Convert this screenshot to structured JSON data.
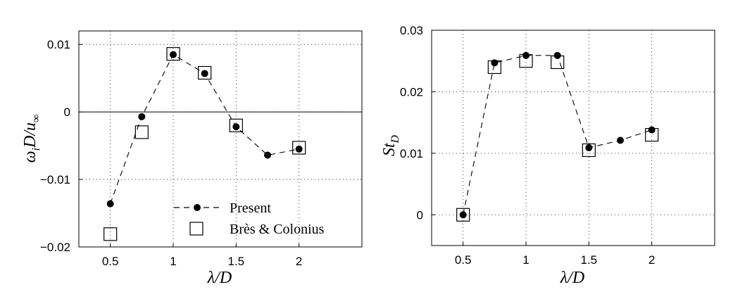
{
  "chart_data": [
    {
      "type": "line",
      "xlabel": "λ/D",
      "ylabel": "ω_i D/u_∞",
      "xlim": [
        0.25,
        2.5
      ],
      "ylim": [
        -0.02,
        0.012
      ],
      "xticks": [
        0.5,
        1,
        1.5,
        2
      ],
      "xtick_labels": [
        "0.5",
        "1",
        "1.5",
        "2"
      ],
      "yticks": [
        -0.02,
        -0.01,
        0,
        0.01
      ],
      "ytick_labels": [
        "−0.02",
        "−0.01",
        "0",
        "0.01"
      ],
      "grid": true,
      "zero_line": true,
      "legend_position": "bottom-right",
      "series": [
        {
          "name": "Present",
          "marker": "filled-circle",
          "line": "dashed",
          "x": [
            0.5,
            0.75,
            1.0,
            1.25,
            1.5,
            1.75,
            2.0
          ],
          "y": [
            -0.0136,
            -0.0007,
            0.0085,
            0.0057,
            -0.0022,
            -0.0064,
            -0.0055
          ]
        },
        {
          "name": "Brès & Colonius",
          "marker": "open-square",
          "line": "none",
          "x": [
            0.5,
            0.75,
            1.0,
            1.25,
            1.5,
            2.0
          ],
          "y": [
            -0.0181,
            -0.003,
            0.0086,
            0.0058,
            -0.002,
            -0.0053
          ]
        }
      ]
    },
    {
      "type": "line",
      "xlabel": "λ/D",
      "ylabel": "St_D",
      "xlim": [
        0.25,
        2.5
      ],
      "ylim": [
        -0.005,
        0.03
      ],
      "xticks": [
        0.5,
        1,
        1.5,
        2
      ],
      "xtick_labels": [
        "0.5",
        "1",
        "1.5",
        "2"
      ],
      "yticks": [
        0,
        0.01,
        0.02,
        0.03
      ],
      "ytick_labels": [
        "0",
        "0.01",
        "0.02",
        "0.03"
      ],
      "grid": true,
      "series": [
        {
          "name": "Present",
          "marker": "filled-circle",
          "line": "dashed",
          "x": [
            0.5,
            0.75,
            1.0,
            1.25,
            1.5,
            1.75,
            2.0
          ],
          "y": [
            0.0,
            0.0247,
            0.0259,
            0.0259,
            0.0109,
            0.0121,
            0.0138
          ]
        },
        {
          "name": "Brès & Colonius",
          "marker": "open-square",
          "line": "none",
          "x": [
            0.5,
            0.75,
            1.0,
            1.25,
            1.5,
            2.0
          ],
          "y": [
            0.0,
            0.024,
            0.025,
            0.0248,
            0.0105,
            0.013
          ]
        }
      ]
    }
  ]
}
